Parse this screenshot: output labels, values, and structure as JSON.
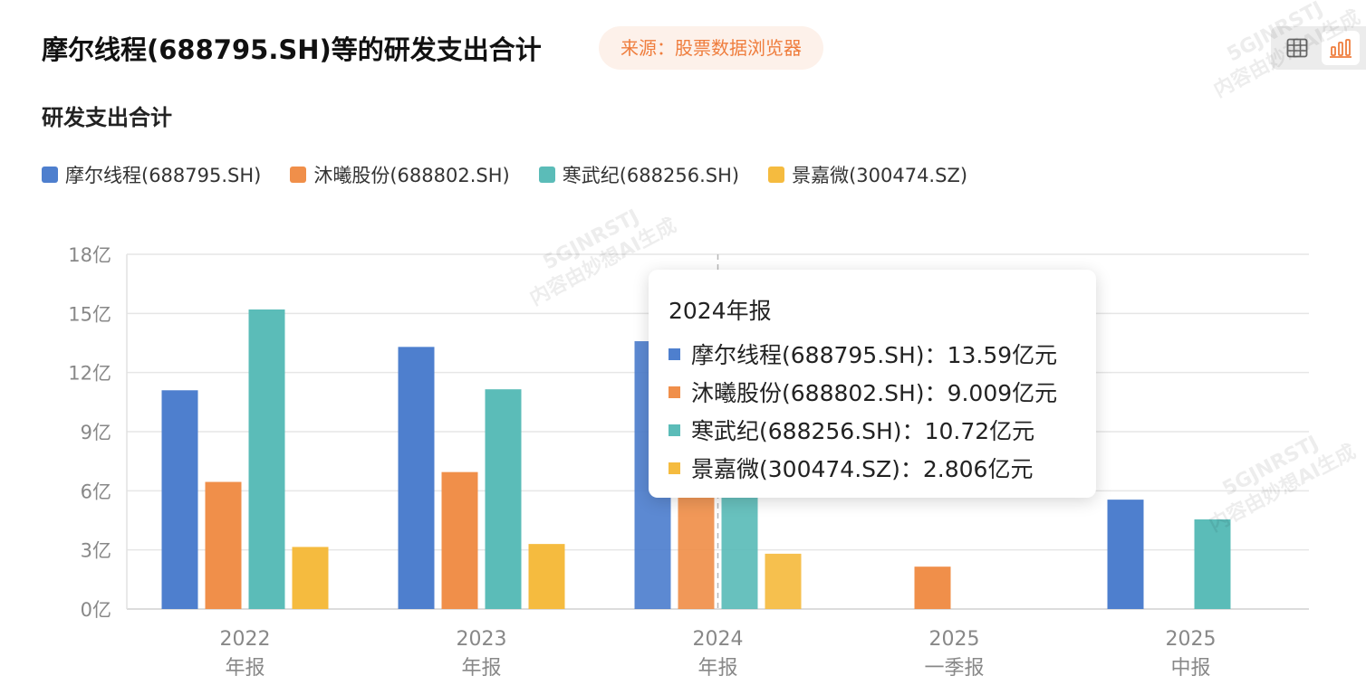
{
  "header": {
    "title": "摩尔线程(688795.SH)等的研发支出合计",
    "source": "来源：股票数据浏览器"
  },
  "subtitle": "研发支出合计",
  "icons": {
    "table_view": "table-icon",
    "chart_view": "bar-chart-icon"
  },
  "colors": {
    "accent": "#ef7d3d",
    "series": [
      "#4e7fce",
      "#f08f4a",
      "#5bbcb8",
      "#f5bb3f"
    ],
    "grid": "#e6e6e6",
    "axis_text": "#888888"
  },
  "chart_data": {
    "type": "bar",
    "title": "研发支出合计",
    "categories": [
      {
        "year": "2022",
        "period": "年报"
      },
      {
        "year": "2023",
        "period": "年报"
      },
      {
        "year": "2024",
        "period": "年报"
      },
      {
        "year": "2025",
        "period": "一季报"
      },
      {
        "year": "2025",
        "period": "中报"
      }
    ],
    "y_ticks": [
      "0亿",
      "3亿",
      "6亿",
      "9亿",
      "12亿",
      "15亿",
      "18亿"
    ],
    "ylim": [
      0,
      18
    ],
    "unit": "亿",
    "grid": true,
    "legend_position": "top-left",
    "series": [
      {
        "name": "摩尔线程(688795.SH)",
        "values": [
          11.1,
          13.3,
          13.59,
          null,
          5.55
        ]
      },
      {
        "name": "沐曦股份(688802.SH)",
        "values": [
          6.45,
          6.95,
          9.009,
          2.15,
          null
        ]
      },
      {
        "name": "寒武纪(688256.SH)",
        "values": [
          15.2,
          11.15,
          10.72,
          null,
          4.55
        ]
      },
      {
        "name": "景嘉微(300474.SZ)",
        "values": [
          3.15,
          3.3,
          2.806,
          null,
          null
        ]
      }
    ]
  },
  "tooltip": {
    "title": "2024年报",
    "rows": [
      {
        "label": "摩尔线程(688795.SH)：",
        "value": "13.59亿元"
      },
      {
        "label": "沐曦股份(688802.SH)：",
        "value": "9.009亿元"
      },
      {
        "label": "寒武纪(688256.SH)：",
        "value": "10.72亿元"
      },
      {
        "label": "景嘉微(300474.SZ)：",
        "value": "2.806亿元"
      }
    ]
  },
  "watermark": {
    "line1": "5GJNRSTJ",
    "line2": "内容由妙想AI生成"
  }
}
